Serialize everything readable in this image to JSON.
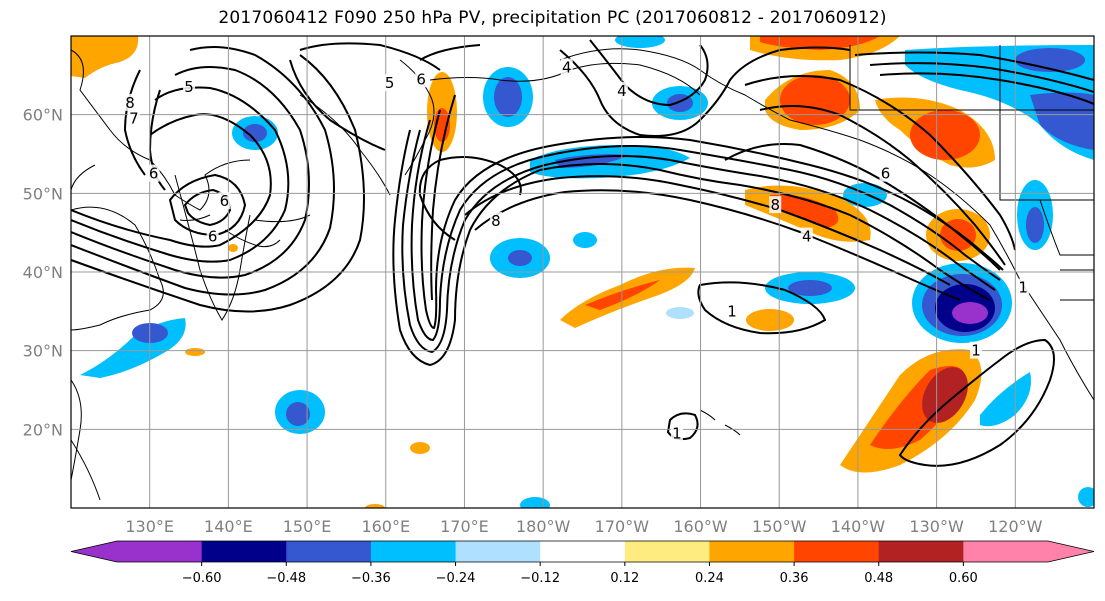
{
  "title": "2017060412 F090 250 hPa PV, precipitation PC (2017060812 - 2017060912)",
  "map": {
    "lon_range": [
      120,
      250
    ],
    "lat_range": [
      10,
      70
    ],
    "lat_ticks": [
      {
        "lat": 20,
        "label": "20°N"
      },
      {
        "lat": 30,
        "label": "30°N"
      },
      {
        "lat": 40,
        "label": "40°N"
      },
      {
        "lat": 50,
        "label": "50°N"
      },
      {
        "lat": 60,
        "label": "60°N"
      }
    ],
    "lon_ticks": [
      {
        "lon": 130,
        "label": "130°E"
      },
      {
        "lon": 140,
        "label": "140°E"
      },
      {
        "lon": 150,
        "label": "150°E"
      },
      {
        "lon": 160,
        "label": "160°E"
      },
      {
        "lon": 170,
        "label": "170°E"
      },
      {
        "lon": 180,
        "label": "180°W"
      },
      {
        "lon": 190,
        "label": "170°W"
      },
      {
        "lon": 200,
        "label": "160°W"
      },
      {
        "lon": 210,
        "label": "150°W"
      },
      {
        "lon": 220,
        "label": "140°W"
      },
      {
        "lon": 230,
        "label": "130°W"
      },
      {
        "lon": 240,
        "label": "120°W"
      }
    ],
    "grid": true,
    "contour_labels": [
      {
        "text": "8",
        "lon": 127.5,
        "lat": 61.5
      },
      {
        "text": "7",
        "lon": 128,
        "lat": 59.5
      },
      {
        "text": "5",
        "lon": 135,
        "lat": 63.5
      },
      {
        "text": "6",
        "lon": 130.5,
        "lat": 52.5
      },
      {
        "text": "5",
        "lon": 160.5,
        "lat": 64
      },
      {
        "text": "6",
        "lon": 164.5,
        "lat": 64.5
      },
      {
        "text": "4",
        "lon": 183,
        "lat": 66
      },
      {
        "text": "4",
        "lon": 190,
        "lat": 63
      },
      {
        "text": "6",
        "lon": 139.5,
        "lat": 49
      },
      {
        "text": "6",
        "lon": 138,
        "lat": 44.5
      },
      {
        "text": "8",
        "lon": 174,
        "lat": 46.5
      },
      {
        "text": "8",
        "lon": 209.5,
        "lat": 48.5
      },
      {
        "text": "4",
        "lon": 213.5,
        "lat": 44.5
      },
      {
        "text": "6",
        "lon": 223.5,
        "lat": 52.5
      },
      {
        "text": "1",
        "lon": 204,
        "lat": 35
      },
      {
        "text": "1",
        "lon": 235,
        "lat": 30
      },
      {
        "text": "1",
        "lon": 197,
        "lat": 19.5
      },
      {
        "text": "1",
        "lon": 241,
        "lat": 38
      }
    ]
  },
  "colorbar": {
    "levels": [
      -0.72,
      -0.6,
      -0.48,
      -0.36,
      -0.24,
      -0.12,
      0.12,
      0.24,
      0.36,
      0.48,
      0.6,
      0.72
    ],
    "colors": [
      "#9932cc",
      "#00008b",
      "#3557d0",
      "#00bfff",
      "#b0e0ff",
      "#ffffff",
      "#ffec80",
      "#ffa500",
      "#ff4500",
      "#b22222",
      "#ff82ab"
    ],
    "under_color": "#9932cc",
    "over_color": "#ff82ab",
    "tick_labels": [
      "−0.60",
      "−0.48",
      "−0.36",
      "−0.24",
      "−0.12",
      "0.12",
      "0.24",
      "0.36",
      "0.48",
      "0.60"
    ],
    "tick_values": [
      -0.6,
      -0.48,
      -0.36,
      -0.24,
      -0.12,
      0.12,
      0.24,
      0.36,
      0.48,
      0.6
    ]
  }
}
